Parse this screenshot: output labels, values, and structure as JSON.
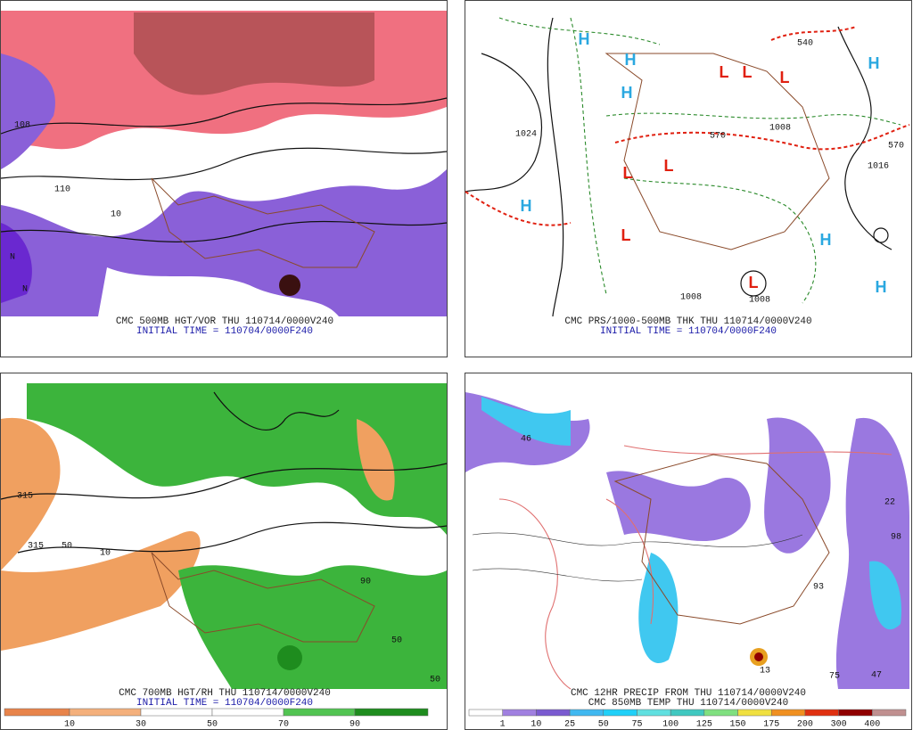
{
  "panels": [
    {
      "caption": "CMC 500MB HGT/VOR THU 110714/0000V240",
      "initial_time": "INITIAL TIME = 110704/0000F240",
      "labels": [
        "N",
        "N",
        "108",
        "110",
        "10"
      ]
    },
    {
      "caption": "CMC PRS/1000-500MB THK THU 110714/0000V240",
      "initial_time": "INITIAL TIME = 110704/0000F240",
      "labels": [
        "H",
        "H",
        "H",
        "H",
        "H",
        "H",
        "H",
        "L",
        "L",
        "L",
        "L",
        "L",
        "L",
        "L",
        "1024",
        "1016",
        "1008",
        "1008",
        "1008",
        "570",
        "570",
        "540"
      ]
    },
    {
      "caption": "CMC 700MB HGT/RH THU 110714/0000V240",
      "initial_time": "INITIAL TIME = 110704/0000F240",
      "labels": [
        "315",
        "315",
        "50",
        "10",
        "90",
        "50",
        "50"
      ]
    },
    {
      "caption": "CMC 12HR PRECIP FROM THU 110714/0000V240",
      "initial_time": "CMC 850MB TEMP THU 110714/0000V240",
      "labels": [
        "46",
        "93",
        "98",
        "22",
        "75",
        "47",
        "13"
      ]
    }
  ],
  "rh_scale": [
    10,
    30,
    50,
    70,
    90
  ],
  "precip_scale": [
    1,
    10,
    25,
    50,
    75,
    100,
    125,
    150,
    175,
    200,
    300,
    400
  ]
}
